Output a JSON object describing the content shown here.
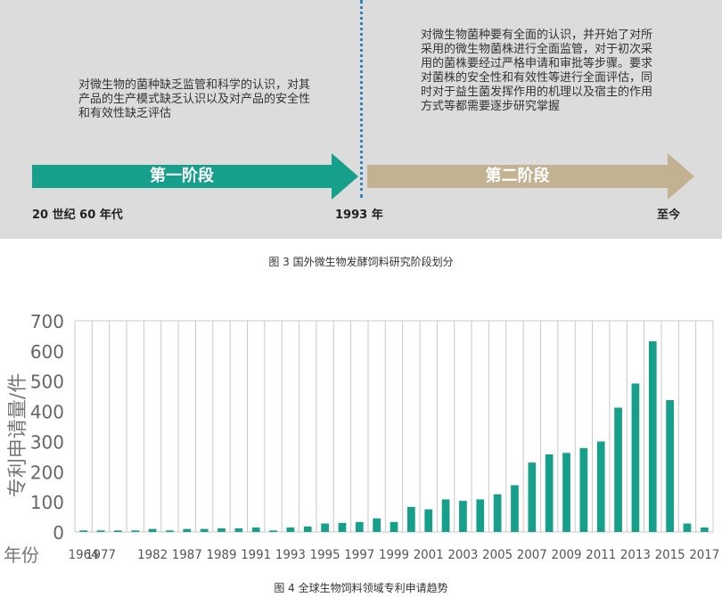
{
  "figure3": {
    "stage1": {
      "label": "第一阶段",
      "description": "对微生物的菌种缺乏监管和科学的认识，对其产品的生产模式缺乏认识以及对产品的安全性和有效性缺乏评估"
    },
    "stage2": {
      "label": "第二阶段",
      "description": "对微生物菌种要有全面的认识，并开始了对所采用的微生物菌株进行全面监管，对于初次采用的菌株要经过严格申请和审批等步骤。要求对菌株的安全性和有效性等进行全面评估，同时对于益生菌发挥作用的机理以及宿主的作用方式等都需要逐步研究掌握"
    },
    "time_start": "20 世纪 60 年代",
    "time_mid": "1993 年",
    "time_end": "至今",
    "caption": "图 3 国外微生物发酵饲料研究阶段划分",
    "colors": {
      "stage1": "#16a08c",
      "stage2": "#c3b291",
      "divider": "#2e86c1",
      "panel": "#dcdcdc"
    }
  },
  "figure4": {
    "caption": "图 4 全球生物饲料领域专利申请趋势"
  },
  "chart_data": {
    "type": "bar",
    "title": "",
    "ylabel": "专利申请量/件",
    "xlabel": "年份",
    "ylim": [
      0,
      700
    ],
    "yticks": [
      0,
      100,
      200,
      300,
      400,
      500,
      600,
      700
    ],
    "grid": "vertical",
    "bar_color": "#16a08c",
    "categories": [
      "1964",
      "1977",
      "1982",
      "1987",
      "1989",
      "1991",
      "1993",
      "1995",
      "1997",
      "1999",
      "2001",
      "2003",
      "2005",
      "2007",
      "2009",
      "2011",
      "2013",
      "2015",
      "2017"
    ],
    "bars": [
      {
        "x": "1964",
        "y": 5
      },
      {
        "x": "1977",
        "y": 5
      },
      {
        "x": "1979",
        "y": 5
      },
      {
        "x": "1980",
        "y": 5
      },
      {
        "x": "1982",
        "y": 10
      },
      {
        "x": "1983",
        "y": 5
      },
      {
        "x": "1987",
        "y": 10
      },
      {
        "x": "1988",
        "y": 10
      },
      {
        "x": "1989",
        "y": 12
      },
      {
        "x": "1990",
        "y": 12
      },
      {
        "x": "1991",
        "y": 15
      },
      {
        "x": "1992",
        "y": 5
      },
      {
        "x": "1993",
        "y": 15
      },
      {
        "x": "1994",
        "y": 18
      },
      {
        "x": "1995",
        "y": 28
      },
      {
        "x": "1996",
        "y": 30
      },
      {
        "x": "1997",
        "y": 33
      },
      {
        "x": "1998",
        "y": 45
      },
      {
        "x": "1999",
        "y": 33
      },
      {
        "x": "2000",
        "y": 83
      },
      {
        "x": "2001",
        "y": 75
      },
      {
        "x": "2002",
        "y": 108
      },
      {
        "x": "2003",
        "y": 103
      },
      {
        "x": "2004",
        "y": 108
      },
      {
        "x": "2005",
        "y": 125
      },
      {
        "x": "2006",
        "y": 155
      },
      {
        "x": "2007",
        "y": 230
      },
      {
        "x": "2008",
        "y": 257
      },
      {
        "x": "2009",
        "y": 262
      },
      {
        "x": "2010",
        "y": 278
      },
      {
        "x": "2011",
        "y": 300
      },
      {
        "x": "2012",
        "y": 412
      },
      {
        "x": "2013",
        "y": 492
      },
      {
        "x": "2014",
        "y": 632
      },
      {
        "x": "2015",
        "y": 437
      },
      {
        "x": "2016",
        "y": 28
      },
      {
        "x": "2017",
        "y": 15
      }
    ]
  }
}
